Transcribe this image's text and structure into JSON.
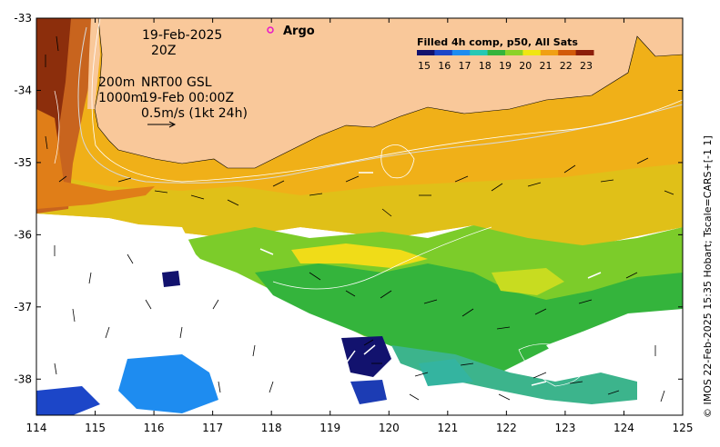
{
  "map": {
    "lon_ticks": [
      "114",
      "115",
      "116",
      "117",
      "118",
      "119",
      "120",
      "121",
      "122",
      "123",
      "124",
      "125"
    ],
    "lat_ticks": [
      "-33",
      "-34",
      "-35",
      "-36",
      "-37",
      "-38"
    ],
    "lon_range": [
      114,
      125
    ],
    "lat_range": [
      -38.5,
      -33
    ],
    "land_color": "#f9c89a"
  },
  "annotations": {
    "date": "19-Feb-2025",
    "time": "20Z",
    "depth_200": "200m",
    "product": "NRT00 GSL",
    "depth_1000": "1000m",
    "product_time": "19-Feb 00:00Z",
    "velocity_scale": "0.5m/s (1kt 24h)"
  },
  "argo": {
    "label": "Argo",
    "marker_color": "#e815c9"
  },
  "legend": {
    "title": "Filled 4h comp, p50, All Sats",
    "ticks": [
      "15",
      "16",
      "17",
      "18",
      "19",
      "20",
      "21",
      "22",
      "23"
    ],
    "colors": [
      "#12126e",
      "#1c46c8",
      "#1e8cf0",
      "#26c8b4",
      "#34b43c",
      "#8cd228",
      "#f0e612",
      "#f0a014",
      "#d25a0a",
      "#8c1e0a"
    ]
  },
  "credit": "© IMOS 22-Feb-2025 15:35 Hobart; Tscale=CARS+[-1 1]"
}
